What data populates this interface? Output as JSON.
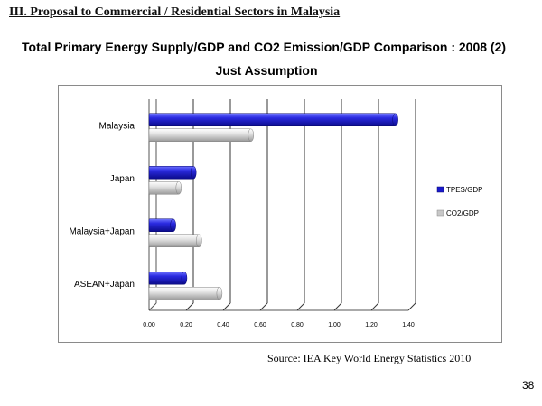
{
  "slide": {
    "section_heading": "III. Proposal to Commercial / Residential Sectors in Malaysia",
    "source": "Source: IEA Key World Energy Statistics 2010",
    "page_number": "38"
  },
  "chart_data": {
    "type": "bar",
    "orientation": "horizontal",
    "title": "Total Primary Energy Supply/GDP and CO2 Emission/GDP Comparison : 2008 (2)",
    "subtitle": "Just Assumption",
    "categories": [
      "Malaysia",
      "Japan",
      "Malaysia+Japan",
      "ASEAN+Japan"
    ],
    "series": [
      {
        "name": "TPES/GDP",
        "color": "#1a1acc",
        "values": [
          1.33,
          0.24,
          0.13,
          0.19
        ]
      },
      {
        "name": "CO2/GDP",
        "color": "#c8c8c8",
        "values": [
          0.55,
          0.16,
          0.27,
          0.38
        ]
      }
    ],
    "xlim": [
      0,
      1.4
    ],
    "xticks": [
      "0.00",
      "0.20",
      "0.40",
      "0.60",
      "0.80",
      "1.00",
      "1.20",
      "1.40"
    ],
    "grid": "vertical",
    "legend_position": "right"
  }
}
